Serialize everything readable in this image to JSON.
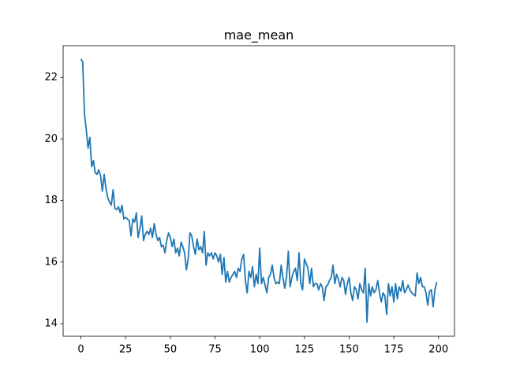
{
  "chart_data": {
    "type": "line",
    "title": "mae_mean",
    "x": [
      0,
      1,
      2,
      3,
      4,
      5,
      6,
      7,
      8,
      9,
      10,
      11,
      12,
      13,
      14,
      15,
      16,
      17,
      18,
      19,
      20,
      21,
      22,
      23,
      24,
      25,
      26,
      27,
      28,
      29,
      30,
      31,
      32,
      33,
      34,
      35,
      36,
      37,
      38,
      39,
      40,
      41,
      42,
      43,
      44,
      45,
      46,
      47,
      48,
      49,
      50,
      51,
      52,
      53,
      54,
      55,
      56,
      57,
      58,
      59,
      60,
      61,
      62,
      63,
      64,
      65,
      66,
      67,
      68,
      69,
      70,
      71,
      72,
      73,
      74,
      75,
      76,
      77,
      78,
      79,
      80,
      81,
      82,
      83,
      84,
      85,
      86,
      87,
      88,
      89,
      90,
      91,
      92,
      93,
      94,
      95,
      96,
      97,
      98,
      99,
      100,
      101,
      102,
      103,
      104,
      105,
      106,
      107,
      108,
      109,
      110,
      111,
      112,
      113,
      114,
      115,
      116,
      117,
      118,
      119,
      120,
      121,
      122,
      123,
      124,
      125,
      126,
      127,
      128,
      129,
      130,
      131,
      132,
      133,
      134,
      135,
      136,
      137,
      138,
      139,
      140,
      141,
      142,
      143,
      144,
      145,
      146,
      147,
      148,
      149,
      150,
      151,
      152,
      153,
      154,
      155,
      156,
      157,
      158,
      159,
      160,
      161,
      162,
      163,
      164,
      165,
      166,
      167,
      168,
      169,
      170,
      171,
      172,
      173,
      174,
      175,
      176,
      177,
      178,
      179,
      180,
      181,
      182,
      183,
      184,
      185,
      186,
      187,
      188,
      189,
      190,
      191,
      192,
      193,
      194,
      195,
      196,
      197,
      198,
      199
    ],
    "values": [
      22.6,
      22.5,
      20.8,
      20.3,
      19.7,
      20.05,
      19.1,
      19.3,
      18.9,
      18.85,
      19.0,
      18.8,
      18.3,
      18.85,
      18.4,
      18.1,
      17.95,
      17.85,
      18.35,
      17.75,
      17.7,
      17.8,
      17.6,
      17.85,
      17.4,
      17.45,
      17.4,
      17.35,
      16.85,
      17.4,
      17.3,
      17.6,
      16.8,
      17.1,
      17.5,
      16.7,
      16.9,
      17.0,
      16.9,
      17.1,
      16.8,
      17.25,
      16.9,
      16.7,
      16.8,
      16.5,
      16.55,
      16.3,
      16.7,
      16.95,
      16.8,
      16.5,
      16.75,
      16.3,
      16.45,
      16.2,
      16.65,
      16.5,
      16.3,
      15.75,
      16.1,
      16.95,
      16.85,
      16.5,
      16.25,
      16.75,
      16.4,
      16.5,
      16.3,
      17.0,
      15.9,
      16.3,
      16.2,
      16.3,
      16.1,
      16.3,
      16.2,
      16.0,
      16.25,
      15.6,
      16.15,
      15.35,
      15.7,
      15.35,
      15.5,
      15.6,
      15.7,
      15.5,
      15.8,
      15.7,
      16.1,
      16.25,
      15.4,
      15.0,
      15.7,
      15.5,
      15.85,
      15.2,
      15.6,
      15.3,
      16.45,
      15.3,
      15.5,
      15.25,
      15.0,
      15.5,
      15.6,
      15.9,
      15.5,
      15.3,
      15.35,
      15.3,
      15.9,
      15.5,
      15.15,
      15.5,
      16.35,
      15.2,
      15.5,
      15.7,
      15.8,
      15.4,
      16.3,
      15.3,
      15.1,
      16.1,
      15.95,
      15.8,
      15.3,
      15.8,
      15.2,
      15.3,
      15.3,
      15.1,
      15.3,
      15.2,
      14.75,
      15.2,
      15.25,
      15.4,
      15.5,
      15.9,
      15.3,
      15.6,
      15.45,
      15.2,
      15.5,
      15.4,
      14.95,
      15.3,
      15.5,
      15.0,
      14.75,
      15.2,
      15.1,
      14.8,
      15.3,
      15.1,
      15.0,
      15.8,
      14.05,
      15.3,
      14.9,
      15.2,
      15.0,
      15.1,
      15.4,
      15.0,
      14.7,
      15.0,
      14.9,
      14.3,
      15.3,
      14.9,
      15.2,
      14.7,
      15.3,
      14.8,
      15.2,
      15.05,
      15.4,
      15.0,
      15.1,
      15.25,
      15.1,
      15.0,
      14.95,
      14.9,
      15.65,
      15.3,
      15.5,
      15.2,
      15.2,
      15.0,
      14.6,
      15.05,
      15.1,
      14.55,
      15.1,
      15.35
    ],
    "color": "#1f77b4",
    "xlim": [
      -9.95,
      208.95
    ],
    "ylim": [
      13.59,
      23.03
    ],
    "xticks": [
      0,
      25,
      50,
      75,
      100,
      125,
      150,
      175,
      200
    ],
    "yticks": [
      14,
      16,
      18,
      20,
      22
    ]
  }
}
